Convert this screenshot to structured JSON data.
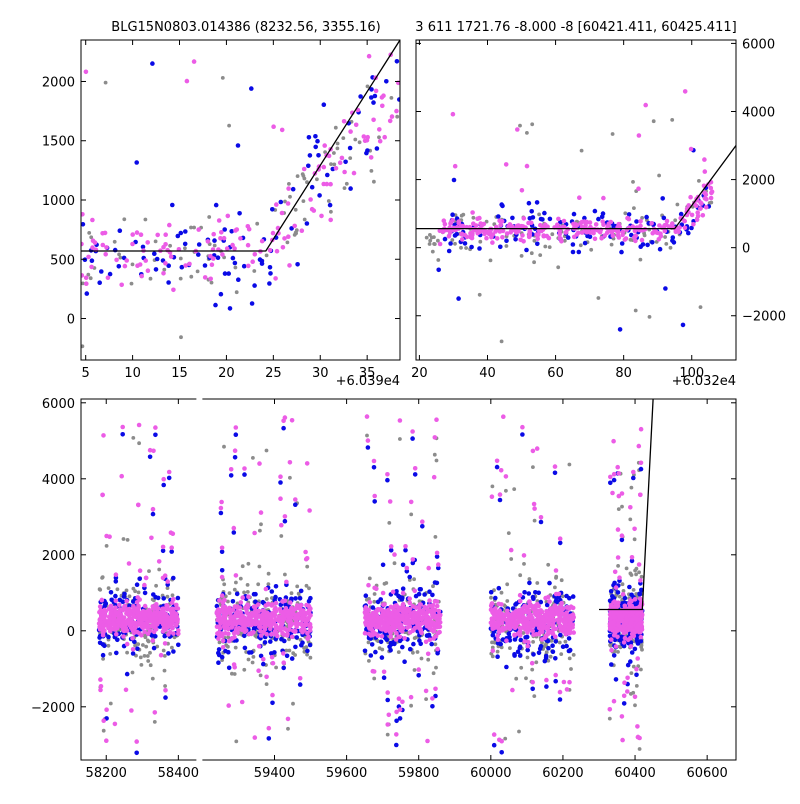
{
  "titles": {
    "left": "BLG15N0803.014386 (8232.56, 3355.16)",
    "right": "3 611 1721.76 -8.000 -8 [60421.411, 60425.411]"
  },
  "offsets": {
    "left": "+6.039e4",
    "right": "+6.032e4"
  },
  "colors": {
    "grey": "#8c8c8c",
    "blue": "#0a0ae6",
    "pink": "#ec5ce6",
    "model": "#000000"
  },
  "chart_data": [
    {
      "type": "scatter",
      "panel": "top-left",
      "title": "BLG15N0803.014386 (8232.56, 3355.16)",
      "x_offset_label": "+6.039e4",
      "xlim": [
        4.5,
        38.5
      ],
      "ylim": [
        -350,
        2350
      ],
      "xticks": [
        5,
        10,
        15,
        20,
        25,
        30,
        35
      ],
      "yticks": [
        0,
        500,
        1000,
        1500,
        2000
      ],
      "y_axis_side": "left",
      "model_line": {
        "x": [
          4.5,
          24.2,
          38.5
        ],
        "y": [
          570,
          570,
          2350
        ]
      },
      "series": [
        {
          "color": "grey",
          "center_x_range": [
            4.5,
            38.5
          ],
          "baseline": 560,
          "spread": 380,
          "outlier_max": 2150,
          "outlier_min": -250,
          "count": 90
        },
        {
          "color": "blue",
          "center_x_range": [
            4.5,
            38.5
          ],
          "baseline": 570,
          "spread": 420,
          "outlier_max": 2200,
          "outlier_min": -300,
          "count": 110
        },
        {
          "color": "pink",
          "center_x_range": [
            4.5,
            38.5
          ],
          "baseline": 580,
          "spread": 280,
          "outlier_max": 2260,
          "outlier_min": 0,
          "count": 150
        }
      ]
    },
    {
      "type": "scatter",
      "panel": "top-right",
      "title": "3 611 1721.76 -8.000 -8 [60421.411, 60425.411]",
      "x_offset_label": "+6.032e4",
      "xlim": [
        19,
        113
      ],
      "ylim": [
        -3300,
        6100
      ],
      "xticks": [
        20,
        40,
        60,
        80,
        100
      ],
      "yticks": [
        -2000,
        0,
        2000,
        4000,
        6000
      ],
      "y_axis_side": "right",
      "model_line": {
        "x": [
          19,
          95,
          113
        ],
        "y": [
          560,
          560,
          3000
        ]
      },
      "series": [
        {
          "color": "grey",
          "center_x_range": [
            22,
            106
          ],
          "baseline": 420,
          "spread": 700,
          "outlier_max": 3800,
          "outlier_min": -3100,
          "count": 150
        },
        {
          "color": "blue",
          "center_x_range": [
            25,
            106
          ],
          "baseline": 500,
          "spread": 600,
          "outlier_max": 2600,
          "outlier_min": -3100,
          "count": 140
        },
        {
          "color": "pink",
          "center_x_range": [
            25,
            106
          ],
          "baseline": 540,
          "spread": 280,
          "outlier_max": 4900,
          "outlier_min": 100,
          "count": 300
        }
      ]
    },
    {
      "type": "scatter",
      "panel": "bottom",
      "xlim": [
        58130,
        60680
      ],
      "ylim": [
        -3400,
        6100
      ],
      "xticks": [
        58200,
        58400,
        59400,
        59600,
        59800,
        60000,
        60200,
        60400,
        60600
      ],
      "yticks": [
        -2000,
        0,
        2000,
        4000,
        6000
      ],
      "y_axis_side": "left",
      "axis_break": {
        "from": 58450,
        "to": 59200
      },
      "model_line": {
        "x": [
          60300,
          60420,
          60450
        ],
        "y": [
          560,
          560,
          6100
        ]
      },
      "seasons": [
        {
          "range": [
            58180,
            58400
          ]
        },
        {
          "range": [
            59240,
            59500
          ]
        },
        {
          "range": [
            59650,
            59860
          ]
        },
        {
          "range": [
            60000,
            60230
          ]
        },
        {
          "range": [
            60330,
            60420
          ]
        }
      ],
      "series": [
        {
          "color": "grey",
          "baseline": 200,
          "spread": 1100,
          "outlier_max": 5200,
          "outlier_min": -3300,
          "count": 900
        },
        {
          "color": "blue",
          "baseline": 250,
          "spread": 900,
          "outlier_max": 5500,
          "outlier_min": -3300,
          "count": 900
        },
        {
          "color": "pink",
          "baseline": 300,
          "spread": 420,
          "outlier_max": 5700,
          "outlier_min": -3000,
          "count": 2200
        }
      ]
    }
  ]
}
